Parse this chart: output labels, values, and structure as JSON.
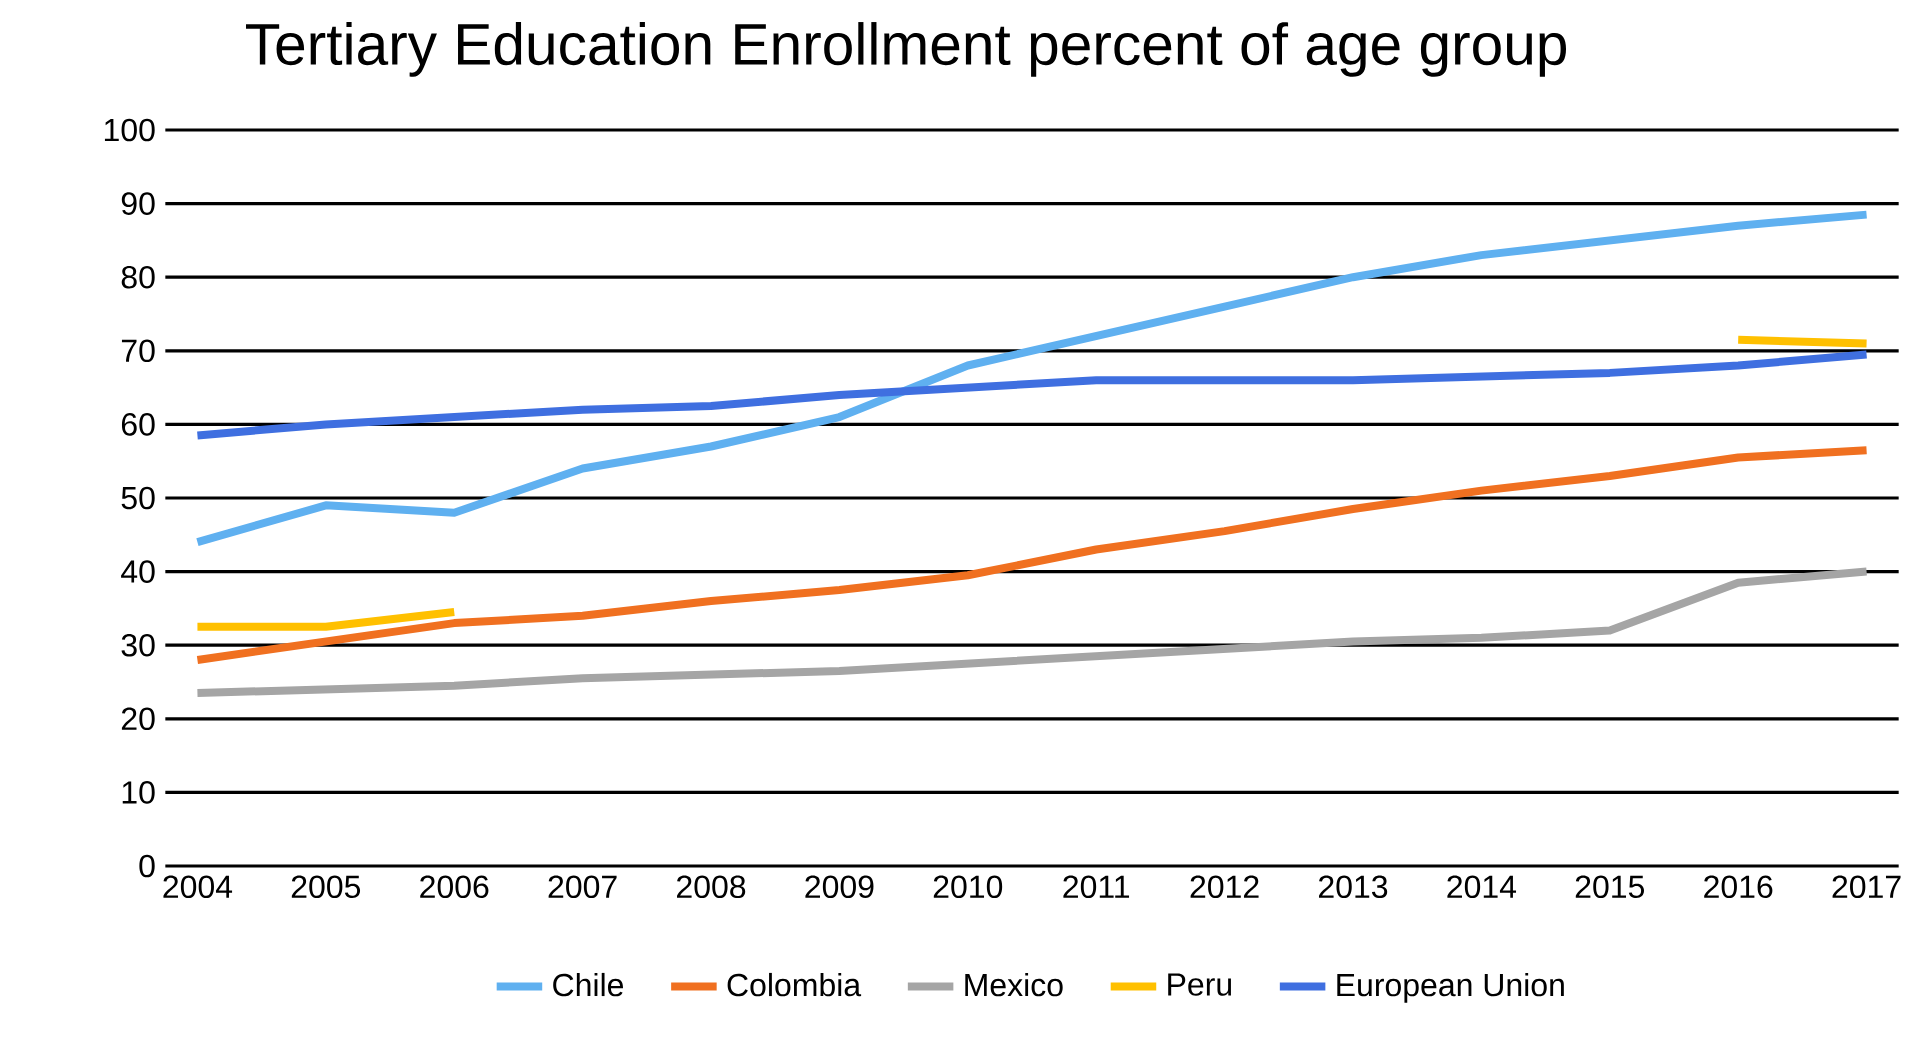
{
  "chart_data": {
    "type": "line",
    "title": "Tertiary Education Enrollment percent of age group",
    "categories": [
      "2004",
      "2005",
      "2006",
      "2007",
      "2008",
      "2009",
      "2010",
      "2011",
      "2012",
      "2013",
      "2014",
      "2015",
      "2016",
      "2017"
    ],
    "series": [
      {
        "name": "Chile",
        "color": "#5fb0f0",
        "values": [
          44,
          49,
          48,
          54,
          57,
          61,
          68,
          72,
          76,
          80,
          83,
          85,
          87,
          88.5
        ]
      },
      {
        "name": "Colombia",
        "color": "#f07020",
        "values": [
          28,
          30.5,
          33,
          34,
          36,
          37.5,
          39.5,
          43,
          45.5,
          48.5,
          51,
          53,
          55.5,
          56.5
        ]
      },
      {
        "name": "Mexico",
        "color": "#a5a5a5",
        "values": [
          23.5,
          24,
          24.5,
          25.5,
          26,
          26.5,
          27.5,
          28.5,
          29.5,
          30.5,
          31,
          32,
          38.5,
          40
        ]
      },
      {
        "name": "Peru",
        "color": "#ffc000",
        "values": [
          32.5,
          32.5,
          34.5,
          null,
          null,
          null,
          null,
          null,
          null,
          null,
          null,
          null,
          71.5,
          71
        ]
      },
      {
        "name": "European Union",
        "color": "#3f6fe0",
        "values": [
          58.5,
          60,
          61,
          62,
          62.5,
          64,
          65,
          66,
          66,
          66,
          66.5,
          67,
          68,
          69.5
        ]
      }
    ],
    "ylim": [
      0,
      100
    ],
    "yticks": [
      0,
      10,
      20,
      30,
      40,
      50,
      60,
      70,
      80,
      90,
      100
    ],
    "grid": "y",
    "legend": "bottom",
    "marker": "none",
    "line_style": "solid"
  }
}
